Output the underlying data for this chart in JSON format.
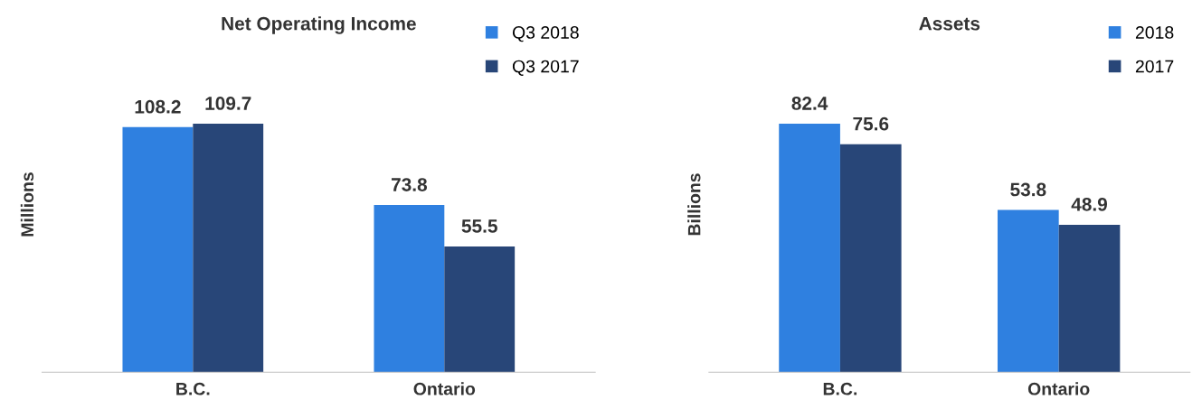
{
  "chart_data": [
    {
      "type": "bar",
      "title": "Net Operating Income",
      "ylabel": "Millions",
      "categories": [
        "B.C.",
        "Ontario"
      ],
      "series": [
        {
          "name": "Q3 2018",
          "color": "#2f80e0",
          "values": [
            108.2,
            73.8
          ]
        },
        {
          "name": "Q3 2017",
          "color": "#284678",
          "values": [
            109.7,
            55.5
          ]
        }
      ],
      "data_labels": true,
      "legend": "top right",
      "grid": false
    },
    {
      "type": "bar",
      "title": "Assets",
      "ylabel": "Billions",
      "categories": [
        "B.C.",
        "Ontario"
      ],
      "series": [
        {
          "name": "2018",
          "color": "#2f80e0",
          "values": [
            82.4,
            53.8
          ]
        },
        {
          "name": "2017",
          "color": "#284678",
          "values": [
            75.6,
            48.9
          ]
        }
      ],
      "data_labels": true,
      "legend": "top right",
      "grid": false
    }
  ]
}
